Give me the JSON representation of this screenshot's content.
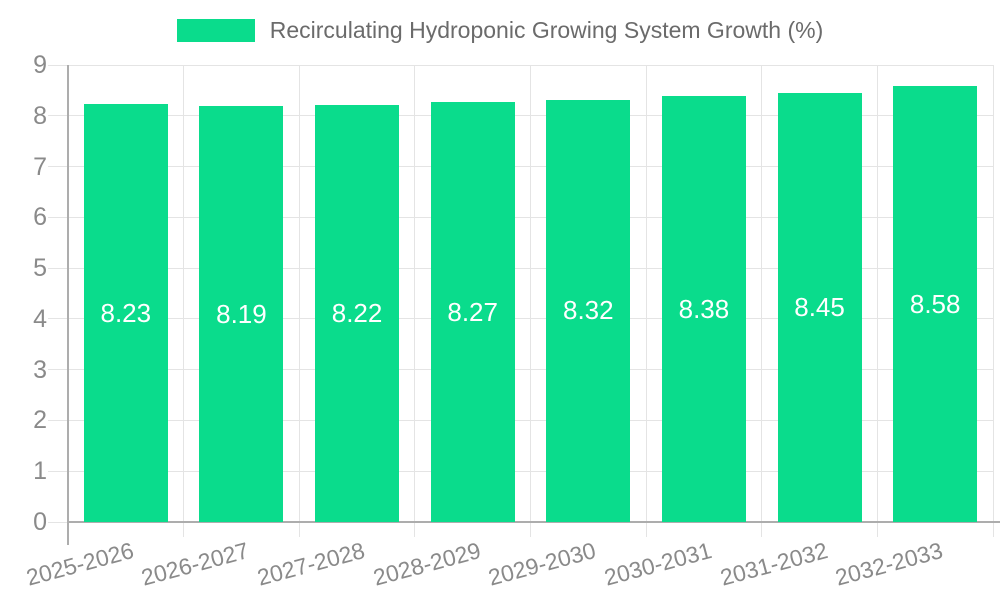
{
  "legend": {
    "label": "Recirculating Hydroponic Growing System Growth (%)"
  },
  "chart_data": {
    "type": "bar",
    "title": "Recirculating Hydroponic Growing System Growth (%)",
    "series_name": "Recirculating Hydroponic Growing System Growth (%)",
    "categories": [
      "2025-2026",
      "2026-2027",
      "2027-2028",
      "2028-2029",
      "2029-2030",
      "2030-2031",
      "2031-2032",
      "2032-2033"
    ],
    "values": [
      8.23,
      8.19,
      8.22,
      8.27,
      8.32,
      8.38,
      8.45,
      8.58
    ],
    "bar_value_labels": [
      "8.23",
      "8.19",
      "8.22",
      "8.27",
      "8.32",
      "8.38",
      "8.45",
      "8.58"
    ],
    "xlabel": "",
    "ylabel": "",
    "ylim": [
      0,
      9
    ],
    "yticks": [
      0,
      1,
      2,
      3,
      4,
      5,
      6,
      7,
      8,
      9
    ],
    "grid": "horizontal-and-vertical",
    "legend_position": "top-center",
    "bar_label_position": "inside-center",
    "x_tick_rotation_deg": -15,
    "colors": {
      "bar": "#0adc8c",
      "bar_label": "#ffffff",
      "grid_line": "#e4e4e4",
      "axis_line": "#adadad",
      "tick_label": "#8a8a8a",
      "legend_text": "#6b6b6b",
      "background": "#ffffff"
    }
  }
}
